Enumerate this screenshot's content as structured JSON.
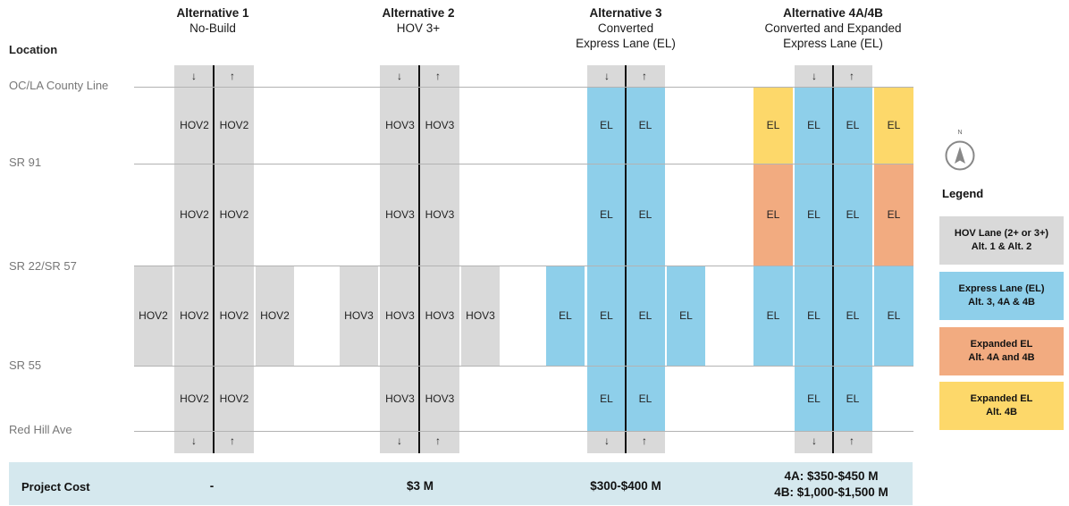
{
  "location_header": "Location",
  "alternatives": [
    {
      "title": "Alternative 1",
      "subtitle": [
        "No-Build"
      ]
    },
    {
      "title": "Alternative 2",
      "subtitle": [
        "HOV 3+"
      ]
    },
    {
      "title": "Alternative 3",
      "subtitle": [
        "Converted",
        "Express Lane (EL)"
      ]
    },
    {
      "title": "Alternative 4A/4B",
      "subtitle": [
        "Converted and Expanded",
        "Express Lane (EL)"
      ]
    }
  ],
  "locations": [
    "OC/LA County Line",
    "SR 91",
    "SR 22/SR 57",
    "SR 55",
    "Red Hill Ave"
  ],
  "arrows": {
    "down": "↓",
    "up": "↑"
  },
  "lane_labels": {
    "hov2": "HOV2",
    "hov3": "HOV3",
    "el": "EL"
  },
  "cost": {
    "label": "Project Cost",
    "alt1": "-",
    "alt2": "$3 M",
    "alt3": "$300-$400 M",
    "alt4": [
      "4A: $350-$450 M",
      "4B: $1,000-$1,500 M"
    ]
  },
  "legend": {
    "title": "Legend",
    "north": "N",
    "items": [
      {
        "lines": [
          "HOV Lane (2+ or 3+)",
          "Alt. 1 & Alt. 2"
        ],
        "color": "#d9d9d9"
      },
      {
        "lines": [
          "Express Lane (EL)",
          "Alt. 3, 4A & 4B"
        ],
        "color": "#8ecfea"
      },
      {
        "lines": [
          "Expanded EL",
          "Alt. 4A and 4B"
        ],
        "color": "#f2ab80"
      },
      {
        "lines": [
          "Expanded EL",
          "Alt. 4B"
        ],
        "color": "#fdd86a"
      }
    ]
  }
}
